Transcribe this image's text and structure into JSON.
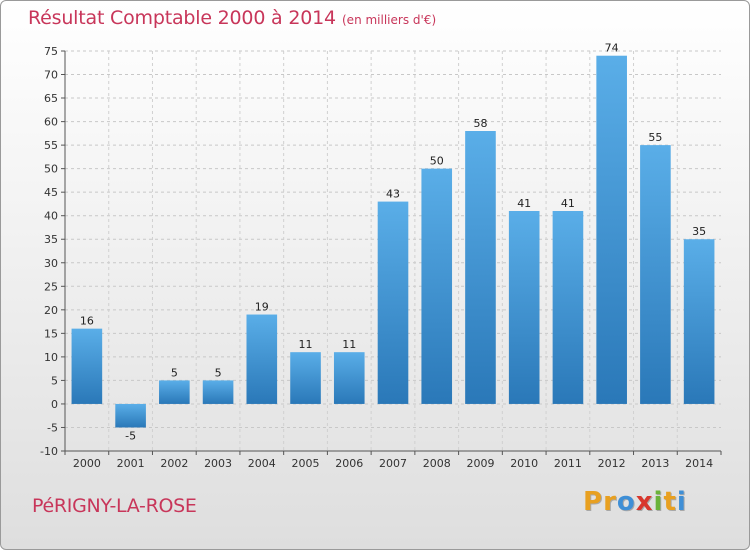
{
  "header": {
    "title": "Résultat Comptable 2000 à 2014",
    "subtitle": "(en milliers d'€)"
  },
  "footer": {
    "commune": "PéRIGNY-LA-ROSE",
    "brand_letters": [
      "P",
      "r",
      "o",
      "x",
      "i",
      "t",
      "i"
    ],
    "brand_colors": [
      "#e8a020",
      "#e8a020",
      "#3f8fd6",
      "#d8372d",
      "#6bb33a",
      "#e8a020",
      "#3f8fd6"
    ]
  },
  "chart_data": {
    "type": "bar",
    "title": "Résultat Comptable 2000 à 2014",
    "subtitle": "(en milliers d'€)",
    "xlabel": "",
    "ylabel": "",
    "categories": [
      "2000",
      "2001",
      "2002",
      "2003",
      "2004",
      "2005",
      "2006",
      "2007",
      "2008",
      "2009",
      "2010",
      "2011",
      "2012",
      "2013",
      "2014"
    ],
    "values": [
      16,
      -5,
      5,
      5,
      19,
      11,
      11,
      43,
      50,
      58,
      41,
      41,
      74,
      55,
      35
    ],
    "data_labels": [
      "16",
      "-5",
      "5",
      "5",
      "19",
      "11",
      "11",
      "43",
      "50",
      "58",
      "41",
      "41",
      "74",
      "55",
      "35"
    ],
    "ylim": [
      -10,
      75
    ],
    "yticks": [
      -10,
      -5,
      0,
      5,
      10,
      15,
      20,
      25,
      30,
      35,
      40,
      45,
      50,
      55,
      60,
      65,
      70,
      75
    ],
    "grid": true,
    "bar_color_light": "#5aaee8",
    "bar_color_dark": "#2a78b8"
  }
}
